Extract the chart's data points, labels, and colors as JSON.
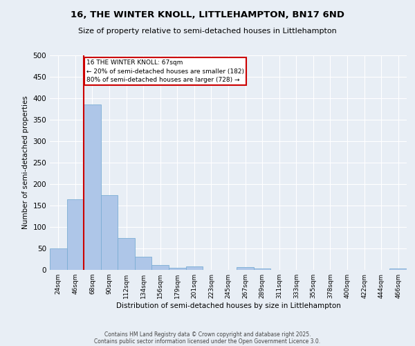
{
  "title_line1": "16, THE WINTER KNOLL, LITTLEHAMPTON, BN17 6ND",
  "title_line2": "Size of property relative to semi-detached houses in Littlehampton",
  "xlabel": "Distribution of semi-detached houses by size in Littlehampton",
  "ylabel": "Number of semi-detached properties",
  "categories": [
    "24sqm",
    "46sqm",
    "68sqm",
    "90sqm",
    "112sqm",
    "134sqm",
    "156sqm",
    "179sqm",
    "201sqm",
    "223sqm",
    "245sqm",
    "267sqm",
    "289sqm",
    "311sqm",
    "333sqm",
    "355sqm",
    "378sqm",
    "400sqm",
    "422sqm",
    "444sqm",
    "466sqm"
  ],
  "values": [
    50,
    165,
    385,
    175,
    75,
    30,
    12,
    5,
    8,
    0,
    0,
    7,
    4,
    0,
    0,
    0,
    0,
    0,
    0,
    0,
    3
  ],
  "bar_color": "#aec6e8",
  "bar_edge_color": "#7aadd4",
  "vline_color": "#cc0000",
  "annotation_text": "16 THE WINTER KNOLL: 67sqm\n← 20% of semi-detached houses are smaller (182)\n80% of semi-detached houses are larger (728) →",
  "annotation_box_color": "#ffffff",
  "annotation_box_edge": "#cc0000",
  "ylim": [
    0,
    500
  ],
  "yticks": [
    0,
    50,
    100,
    150,
    200,
    250,
    300,
    350,
    400,
    450,
    500
  ],
  "background_color": "#e8eef5",
  "footer_line1": "Contains HM Land Registry data © Crown copyright and database right 2025.",
  "footer_line2": "Contains public sector information licensed under the Open Government Licence 3.0."
}
